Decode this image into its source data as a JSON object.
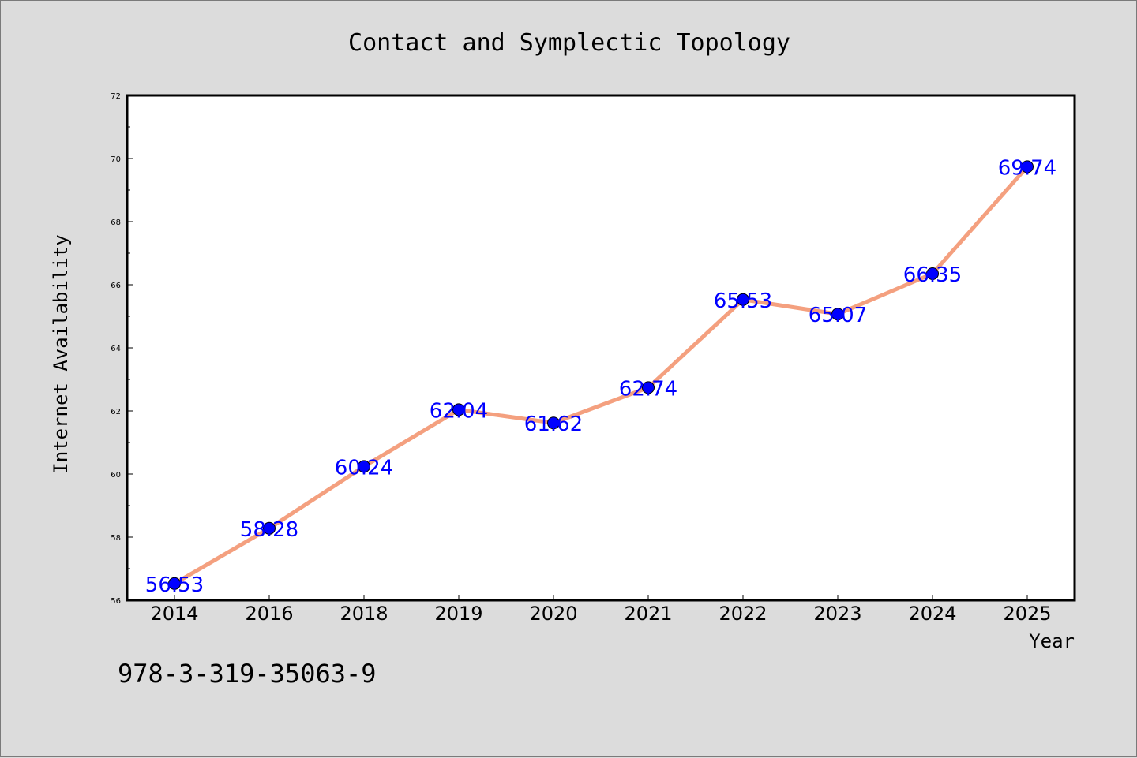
{
  "chart_data": {
    "type": "line",
    "title": "Contact and Symplectic Topology",
    "xlabel": "Year",
    "ylabel": "Internet Availability",
    "categories": [
      "2014",
      "2016",
      "2018",
      "2019",
      "2020",
      "2021",
      "2022",
      "2023",
      "2024",
      "2025"
    ],
    "values": [
      56.53,
      58.28,
      60.24,
      62.04,
      61.62,
      62.74,
      65.53,
      65.07,
      66.35,
      69.74
    ],
    "data_labels": [
      "56.53",
      "58.28",
      "60.24",
      "62.04",
      "61.62",
      "62.74",
      "65.53",
      "65.07",
      "66.35",
      "69.74"
    ],
    "ylim": [
      56,
      72
    ],
    "y_ticks": [
      56,
      58,
      60,
      62,
      64,
      66,
      68,
      70,
      72
    ],
    "grid": false,
    "legend": "none",
    "colors": {
      "line": "#f4a07f",
      "marker": "#0000ff",
      "data_label": "#0000ff",
      "background": "#dcdcdc",
      "plot_area": "#ffffff"
    }
  },
  "footnote": "978-3-319-35063-9"
}
